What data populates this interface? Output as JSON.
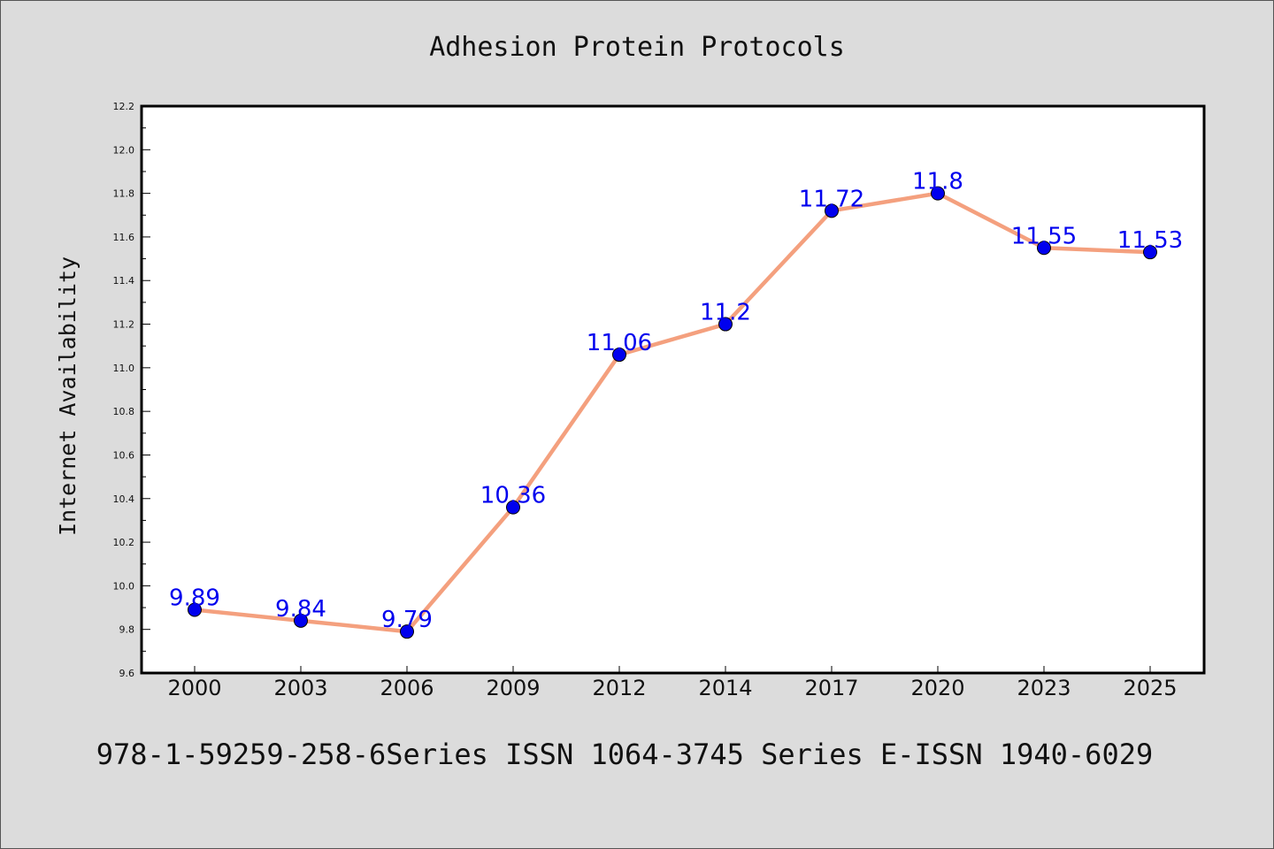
{
  "chart_data": {
    "type": "line",
    "title": "Adhesion Protein Protocols",
    "xlabel": "",
    "ylabel": "Internet Availability",
    "categories": [
      "2000",
      "2003",
      "2006",
      "2009",
      "2012",
      "2014",
      "2017",
      "2020",
      "2023",
      "2025"
    ],
    "series": [
      {
        "values": [
          9.89,
          9.84,
          9.79,
          10.36,
          11.06,
          11.2,
          11.72,
          11.8,
          11.55,
          11.53
        ],
        "line_color": "#f4a07e",
        "marker_color": "#0000ee"
      }
    ],
    "data_labels": [
      "9.89",
      "9.84",
      "9.79",
      "10.36",
      "11.06",
      "11.2",
      "11.72",
      "11.8",
      "11.55",
      "11.53"
    ],
    "ylim": [
      9.6,
      12.2
    ],
    "yticks": [
      "9.6",
      "9.8",
      "10.0",
      "10.2",
      "10.4",
      "10.6",
      "10.8",
      "11.0",
      "11.2",
      "11.4",
      "11.6",
      "11.8",
      "12.0",
      "12.2"
    ],
    "grid": false,
    "legend": "none"
  },
  "footer": "978-1-59259-258-6Series ISSN 1064-3745 Series E-ISSN 1940-6029"
}
